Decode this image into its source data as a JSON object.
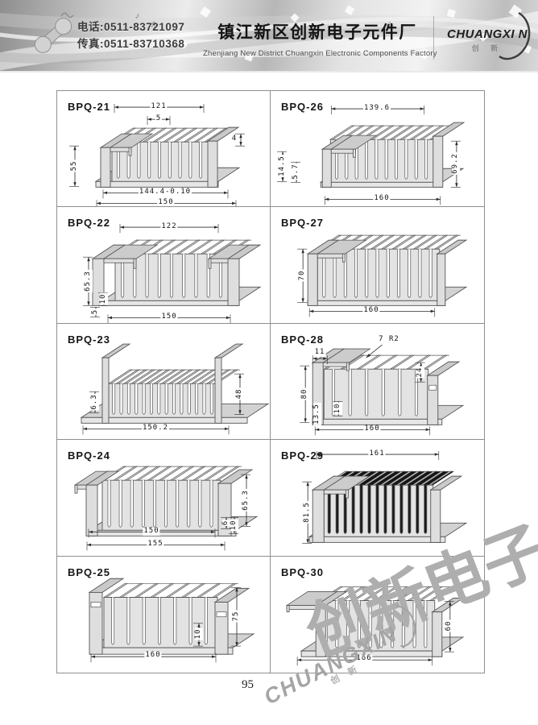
{
  "header": {
    "phone": "电话:0511-83721097",
    "fax": "传真:0511-83710368",
    "company_cn": "镇江新区创新电子元件厂",
    "company_en": "Zhenjiang New District Chuangxin Electronic Components Factory",
    "logo_text": "CHUANGXI N",
    "logo_sub": "创 新"
  },
  "footer": {
    "page_number": "95"
  },
  "watermarks": {
    "cn": "创新电子",
    "en": "CHUANGXIN",
    "en_sub": "创 新"
  },
  "models": [
    {
      "name": "BPQ-21",
      "dims": {
        "w_top": "121",
        "pitch": "5",
        "lip": "4",
        "h": "55",
        "w_tol": "144.4-0.10",
        "w": "150"
      }
    },
    {
      "name": "BPQ-26",
      "dims": {
        "w_top": "139.6",
        "h1": "14.5",
        "h2": "5.7",
        "h": "69.2",
        "w": "160"
      }
    },
    {
      "name": "BPQ-22",
      "dims": {
        "w_top": "122",
        "h": "65.3",
        "t1": "10",
        "t2": "5",
        "w": "150"
      }
    },
    {
      "name": "BPQ-27",
      "dims": {
        "h": "70",
        "w": "160"
      }
    },
    {
      "name": "BPQ-23",
      "dims": {
        "t": "6.3",
        "h": "48",
        "w": "150.2"
      }
    },
    {
      "name": "BPQ-28",
      "dims": {
        "note": "7 R2",
        "t_top": "11",
        "h": "80",
        "h2": "13.5",
        "d": "10",
        "h3": "24",
        "w": "160"
      }
    },
    {
      "name": "BPQ-24",
      "dims": {
        "h": "65.3",
        "t1": "6",
        "t2": "10",
        "w_in": "150",
        "w": "155"
      }
    },
    {
      "name": "BPQ-29",
      "dims": {
        "w_top": "161",
        "h": "81.5"
      }
    },
    {
      "name": "BPQ-25",
      "dims": {
        "d": "10",
        "h": "75",
        "w": "160"
      }
    },
    {
      "name": "BPQ-30",
      "dims": {
        "h": "60",
        "w": "166"
      }
    }
  ]
}
